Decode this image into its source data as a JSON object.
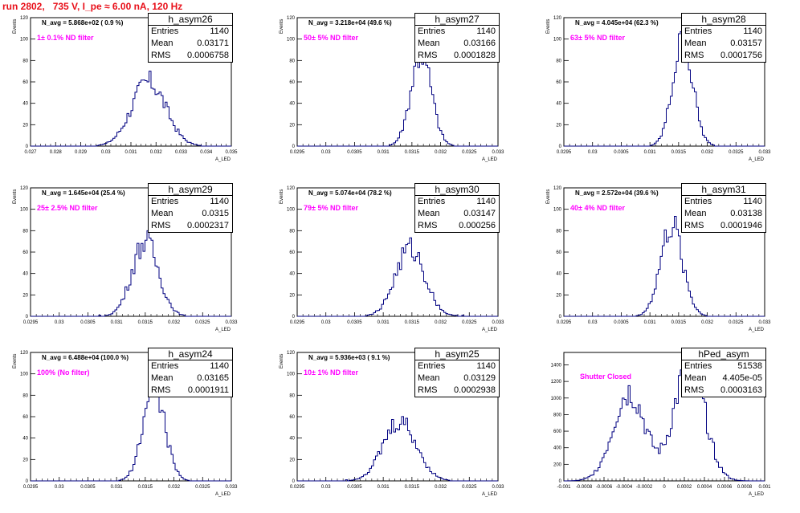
{
  "page": {
    "title": "run 2802,   735 V, I_pe ≈ 6.00 nA, 120 Hz"
  },
  "colors": {
    "histogram": "#000080",
    "title": "#e8101a",
    "filter_label": "#ff00ff",
    "axis": "#000000"
  },
  "panels": [
    {
      "name": "h_asym26",
      "navg": "N_avg = 5.868e+02 ( 0.9 %)",
      "filter": "1± 0.1% ND filter",
      "entries": "1140",
      "mean": "0.03171",
      "rms": "0.0006758"
    },
    {
      "name": "h_asym27",
      "navg": "N_avg = 3.218e+04 (49.6 %)",
      "filter": "50± 5% ND filter",
      "entries": "1140",
      "mean": "0.03166",
      "rms": "0.0001828"
    },
    {
      "name": "h_asym28",
      "navg": "N_avg = 4.045e+04 (62.3 %)",
      "filter": "63± 5% ND filter",
      "entries": "1140",
      "mean": "0.03157",
      "rms": "0.0001756"
    },
    {
      "name": "h_asym29",
      "navg": "N_avg = 1.645e+04 (25.4 %)",
      "filter": "25± 2.5% ND filter",
      "entries": "1140",
      "mean": "0.0315",
      "rms": "0.0002317"
    },
    {
      "name": "h_asym30",
      "navg": "N_avg = 5.074e+04 (78.2 %)",
      "filter": "79± 5% ND filter",
      "entries": "1140",
      "mean": "0.03147",
      "rms": "0.000256"
    },
    {
      "name": "h_asym31",
      "navg": "N_avg = 2.572e+04 (39.6 %)",
      "filter": "40± 4% ND filter",
      "entries": "1140",
      "mean": "0.03138",
      "rms": "0.0001946"
    },
    {
      "name": "h_asym24",
      "navg": "N_avg = 6.488e+04 (100.0 %)",
      "filter": "100% (No filter)",
      "entries": "1140",
      "mean": "0.03165",
      "rms": "0.0001911"
    },
    {
      "name": "h_asym25",
      "navg": "N_avg = 5.936e+03 ( 9.1 %)",
      "filter": "10± 1% ND filter",
      "entries": "1140",
      "mean": "0.03129",
      "rms": "0.0002938"
    },
    {
      "name": "hPed_asym",
      "navg": "",
      "filter": "Shutter Closed",
      "entries": "51538",
      "mean": "4.405e-05",
      "rms": "0.0003163"
    }
  ],
  "stat_labels": {
    "entries": "Entries",
    "mean": "Mean",
    "rms": "RMS"
  },
  "chart_data": [
    {
      "type": "bar",
      "title": "h_asym26",
      "xlabel": "A_LED",
      "ylabel": "Events",
      "xlim": [
        0.027,
        0.035
      ],
      "ylim": [
        0,
        120
      ],
      "xticks": [
        "0.027",
        "0.028",
        "0.029",
        "0.03",
        "0.031",
        "0.032",
        "0.033",
        "0.034",
        "0.035"
      ],
      "yticks": [
        "0",
        "20",
        "40",
        "60",
        "80",
        "100",
        "120"
      ],
      "peaks": [
        {
          "mean": 0.03171,
          "sigma": 0.00068,
          "amplitude": 60
        }
      ]
    },
    {
      "type": "bar",
      "title": "h_asym27",
      "xlabel": "A_LED",
      "ylabel": "Events",
      "xlim": [
        0.0295,
        0.033
      ],
      "ylim": [
        0,
        120
      ],
      "xticks": [
        "0.0295",
        "0.03",
        "0.0305",
        "0.031",
        "0.0315",
        "0.032",
        "0.0325",
        "0.033"
      ],
      "yticks": [
        "0",
        "20",
        "40",
        "60",
        "80",
        "100",
        "120"
      ],
      "peaks": [
        {
          "mean": 0.03166,
          "sigma": 0.00018,
          "amplitude": 86
        }
      ]
    },
    {
      "type": "bar",
      "title": "h_asym28",
      "xlabel": "A_LED",
      "ylabel": "Events",
      "xlim": [
        0.0295,
        0.033
      ],
      "ylim": [
        0,
        120
      ],
      "xticks": [
        "0.0295",
        "0.03",
        "0.0305",
        "0.031",
        "0.0315",
        "0.032",
        "0.0325",
        "0.033"
      ],
      "yticks": [
        "0",
        "20",
        "40",
        "60",
        "80",
        "100",
        "120"
      ],
      "peaks": [
        {
          "mean": 0.03157,
          "sigma": 0.000176,
          "amplitude": 97
        }
      ]
    },
    {
      "type": "bar",
      "title": "h_asym29",
      "xlabel": "A_LED",
      "ylabel": "Events",
      "xlim": [
        0.0295,
        0.033
      ],
      "ylim": [
        0,
        120
      ],
      "xticks": [
        "0.0295",
        "0.03",
        "0.0305",
        "0.031",
        "0.0315",
        "0.032",
        "0.0325",
        "0.033"
      ],
      "yticks": [
        "0",
        "20",
        "40",
        "60",
        "80",
        "100",
        "120"
      ],
      "peaks": [
        {
          "mean": 0.0315,
          "sigma": 0.00023,
          "amplitude": 70
        }
      ]
    },
    {
      "type": "bar",
      "title": "h_asym30",
      "xlabel": "A_LED",
      "ylabel": "Events",
      "xlim": [
        0.0295,
        0.033
      ],
      "ylim": [
        0,
        120
      ],
      "xticks": [
        "0.0295",
        "0.03",
        "0.0305",
        "0.031",
        "0.0315",
        "0.032",
        "0.0325",
        "0.033"
      ],
      "yticks": [
        "0",
        "20",
        "40",
        "60",
        "80",
        "100",
        "120"
      ],
      "peaks": [
        {
          "mean": 0.03147,
          "sigma": 0.000256,
          "amplitude": 63
        }
      ]
    },
    {
      "type": "bar",
      "title": "h_asym31",
      "xlabel": "A_LED",
      "ylabel": "Events",
      "xlim": [
        0.0295,
        0.033
      ],
      "ylim": [
        0,
        120
      ],
      "xticks": [
        "0.0295",
        "0.03",
        "0.0305",
        "0.031",
        "0.0315",
        "0.032",
        "0.0325",
        "0.033"
      ],
      "yticks": [
        "0",
        "20",
        "40",
        "60",
        "80",
        "100",
        "120"
      ],
      "peaks": [
        {
          "mean": 0.03138,
          "sigma": 0.000195,
          "amplitude": 84
        }
      ]
    },
    {
      "type": "bar",
      "title": "h_asym24",
      "xlabel": "A_LED",
      "ylabel": "Events",
      "xlim": [
        0.0295,
        0.033
      ],
      "ylim": [
        0,
        120
      ],
      "xticks": [
        "0.0295",
        "0.03",
        "0.0305",
        "0.031",
        "0.0315",
        "0.032",
        "0.0325",
        "0.033"
      ],
      "yticks": [
        "0",
        "20",
        "40",
        "60",
        "80",
        "100",
        "120"
      ],
      "peaks": [
        {
          "mean": 0.03165,
          "sigma": 0.00019,
          "amplitude": 88
        }
      ]
    },
    {
      "type": "bar",
      "title": "h_asym25",
      "xlabel": "A_LED",
      "ylabel": "Events",
      "xlim": [
        0.0295,
        0.033
      ],
      "ylim": [
        0,
        120
      ],
      "xticks": [
        "0.0295",
        "0.03",
        "0.0305",
        "0.031",
        "0.0315",
        "0.032",
        "0.0325",
        "0.033"
      ],
      "yticks": [
        "0",
        "20",
        "40",
        "60",
        "80",
        "100",
        "120"
      ],
      "peaks": [
        {
          "mean": 0.03129,
          "sigma": 0.00029,
          "amplitude": 55
        }
      ]
    },
    {
      "type": "bar",
      "title": "hPed_asym",
      "xlabel": "A_LED",
      "ylabel": "",
      "xlim": [
        -0.001,
        0.001
      ],
      "ylim": [
        0,
        1550
      ],
      "xticks": [
        "-0.001",
        "-0.0008",
        "-0.0006",
        "-0.0004",
        "-0.0002",
        "0",
        "0.0002",
        "0.0004",
        "0.0006",
        "0.0008",
        "0.001"
      ],
      "yticks": [
        "0",
        "200",
        "400",
        "600",
        "800",
        "1000",
        "1200",
        "1400"
      ],
      "peaks": [
        {
          "mean": -0.00035,
          "sigma": 0.00016,
          "amplitude": 1070
        },
        {
          "mean": 0.00025,
          "sigma": 0.00015,
          "amplitude": 1420
        }
      ]
    }
  ]
}
